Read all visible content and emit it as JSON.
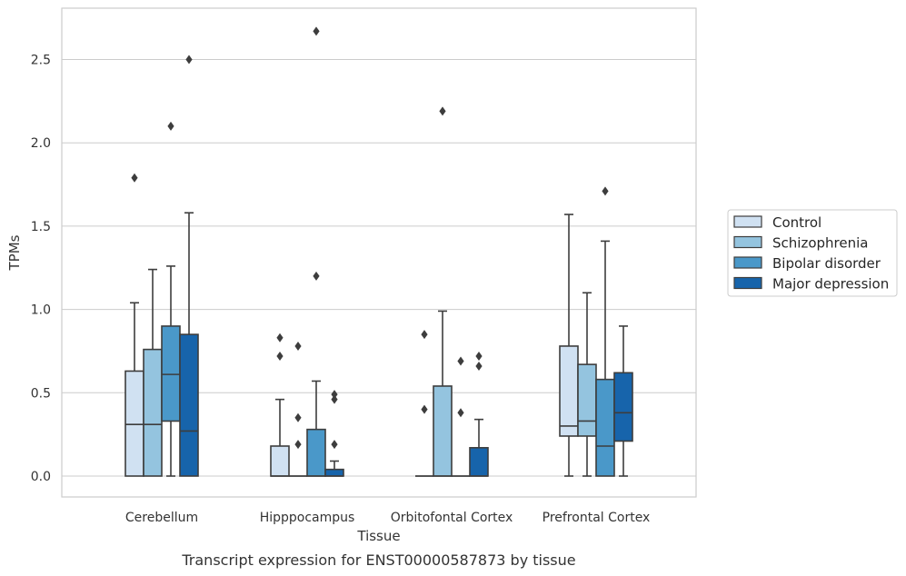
{
  "chart_data": {
    "type": "box",
    "title": "",
    "caption": "Transcript expression for ENST00000587873 by tissue",
    "xlabel": "Tissue",
    "ylabel": "TPMs",
    "ylim": [
      -0.13,
      2.8
    ],
    "yticks": [
      0.0,
      0.5,
      1.0,
      1.5,
      2.0,
      2.5
    ],
    "ytick_labels": [
      "0.0",
      "0.5",
      "1.0",
      "1.5",
      "2.0",
      "2.5"
    ],
    "grid": "horizontal",
    "legend_placement": "right",
    "categories": [
      "Cerebellum",
      "Hipppocampus",
      "Orbitofontal Cortex",
      "Prefrontal Cortex"
    ],
    "series": [
      {
        "name": "Control",
        "color": "#d0e1f2",
        "boxes": [
          {
            "whislo": 0.0,
            "q1": 0.0,
            "med": 0.31,
            "q3": 0.63,
            "whishi": 1.04,
            "fliers": [
              1.79
            ]
          },
          {
            "whislo": 0.0,
            "q1": 0.0,
            "med": 0.0,
            "q3": 0.18,
            "whishi": 0.46,
            "fliers": [
              0.72,
              0.83
            ]
          },
          {
            "whislo": 0.0,
            "q1": 0.0,
            "med": 0.0,
            "q3": 0.0,
            "whishi": 0.0,
            "fliers": [
              0.4,
              0.85
            ]
          },
          {
            "whislo": 0.0,
            "q1": 0.24,
            "med": 0.3,
            "q3": 0.78,
            "whishi": 1.57,
            "fliers": []
          }
        ]
      },
      {
        "name": "Schizophrenia",
        "color": "#94c4df",
        "boxes": [
          {
            "whislo": 0.0,
            "q1": 0.0,
            "med": 0.31,
            "q3": 0.76,
            "whishi": 1.24,
            "fliers": []
          },
          {
            "whislo": 0.0,
            "q1": 0.0,
            "med": 0.0,
            "q3": 0.0,
            "whishi": 0.0,
            "fliers": [
              0.19,
              0.35,
              0.78
            ]
          },
          {
            "whislo": 0.0,
            "q1": 0.0,
            "med": 0.0,
            "q3": 0.54,
            "whishi": 0.99,
            "fliers": [
              2.19
            ]
          },
          {
            "whislo": 0.0,
            "q1": 0.24,
            "med": 0.33,
            "q3": 0.67,
            "whishi": 1.1,
            "fliers": []
          }
        ]
      },
      {
        "name": "Bipolar disorder",
        "color": "#4a98c9",
        "boxes": [
          {
            "whislo": 0.0,
            "q1": 0.33,
            "med": 0.61,
            "q3": 0.9,
            "whishi": 1.26,
            "fliers": [
              2.1
            ]
          },
          {
            "whislo": 0.0,
            "q1": 0.0,
            "med": 0.0,
            "q3": 0.28,
            "whishi": 0.57,
            "fliers": [
              1.2,
              2.67
            ]
          },
          {
            "whislo": 0.0,
            "q1": 0.0,
            "med": 0.0,
            "q3": 0.0,
            "whishi": 0.0,
            "fliers": [
              0.38,
              0.69
            ]
          },
          {
            "whislo": 0.0,
            "q1": 0.0,
            "med": 0.18,
            "q3": 0.58,
            "whishi": 1.41,
            "fliers": [
              1.71
            ]
          }
        ]
      },
      {
        "name": "Major depression",
        "color": "#1764ab",
        "boxes": [
          {
            "whislo": 0.0,
            "q1": 0.0,
            "med": 0.27,
            "q3": 0.85,
            "whishi": 1.58,
            "fliers": [
              2.5
            ]
          },
          {
            "whislo": 0.0,
            "q1": 0.0,
            "med": 0.0,
            "q3": 0.04,
            "whishi": 0.09,
            "fliers": [
              0.19,
              0.46,
              0.49
            ]
          },
          {
            "whislo": 0.0,
            "q1": 0.0,
            "med": 0.0,
            "q3": 0.17,
            "whishi": 0.34,
            "fliers": [
              0.66,
              0.72
            ]
          },
          {
            "whislo": 0.0,
            "q1": 0.21,
            "med": 0.38,
            "q3": 0.62,
            "whishi": 0.9,
            "fliers": []
          }
        ]
      }
    ]
  }
}
